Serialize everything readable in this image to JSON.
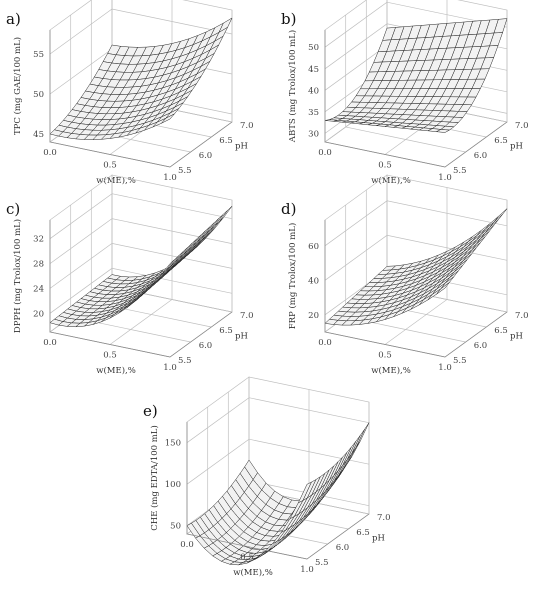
{
  "chart_data": [
    {
      "id": "a",
      "type": "surface3d",
      "panel_label": "a)",
      "xlabel": "w(ME),%",
      "ylabel": "pH",
      "zlabel": "TPC  (mg GAE/100 mL)",
      "x_ticks": [
        "0.0",
        "0.5",
        "1.0"
      ],
      "y_ticks": [
        "5.5",
        "6.0",
        "6.5",
        "7.0"
      ],
      "z_ticks": [
        "45",
        "50",
        "55"
      ],
      "xlim": [
        0,
        1
      ],
      "ylim": [
        5.5,
        7.0
      ],
      "zlim": [
        44,
        58
      ],
      "grid": true,
      "surface": {
        "z00": 45,
        "z10": 50,
        "z01": 50.5,
        "z11": 57,
        "cx": -1.5,
        "cy": -1.0,
        "cxy": 0
      }
    },
    {
      "id": "b",
      "type": "surface3d",
      "panel_label": "b)",
      "xlabel": "w(ME),%",
      "ylabel": "pH",
      "zlabel": "ABTS  (mg Trolox/100 mL)",
      "x_ticks": [
        "0.0",
        "0.5",
        "1.0"
      ],
      "y_ticks": [
        "5.5",
        "6.0",
        "6.5",
        "7.0"
      ],
      "z_ticks": [
        "30",
        "35",
        "40",
        "45",
        "50"
      ],
      "xlim": [
        0,
        1
      ],
      "ylim": [
        5.5,
        7.0
      ],
      "zlim": [
        28,
        54
      ],
      "grid": true,
      "surface": {
        "z00": 33,
        "z10": 36,
        "z01": 44,
        "z11": 52,
        "cx": 0,
        "cy": -5,
        "cxy": 0
      }
    },
    {
      "id": "c",
      "type": "surface3d",
      "panel_label": "c)",
      "xlabel": "w(ME),%",
      "ylabel": "pH",
      "zlabel": "DPPH  (mg Trolox/100 mL)",
      "x_ticks": [
        "0.0",
        "0.5",
        "1.0"
      ],
      "y_ticks": [
        "5.5",
        "6.0",
        "6.5",
        "7.0"
      ],
      "z_ticks": [
        "20",
        "24",
        "28",
        "32"
      ],
      "xlim": [
        0,
        1
      ],
      "ylim": [
        5.5,
        7.0
      ],
      "zlim": [
        17,
        35
      ],
      "grid": true,
      "surface": {
        "z00": 18.5,
        "z10": 32,
        "z01": 19,
        "z11": 34,
        "cx": -4,
        "cy": 0,
        "cxy": 0
      }
    },
    {
      "id": "d",
      "type": "surface3d",
      "panel_label": "d)",
      "xlabel": "w(ME),%",
      "ylabel": "pH",
      "zlabel": "FRP  (mg Trolox/100 mL)",
      "x_ticks": [
        "0.0",
        "0.5",
        "1.0"
      ],
      "y_ticks": [
        "5.5",
        "6.0",
        "6.5",
        "7.0"
      ],
      "z_ticks": [
        "20",
        "40",
        "60"
      ],
      "xlim": [
        0,
        1
      ],
      "ylim": [
        5.5,
        7.0
      ],
      "zlim": [
        10,
        75
      ],
      "grid": true,
      "surface": {
        "z00": 15,
        "z10": 50,
        "z01": 22,
        "z11": 70,
        "cx": -8,
        "cy": 0,
        "cxy": 0
      }
    },
    {
      "id": "e",
      "type": "surface3d",
      "panel_label": "e)",
      "xlabel": "w(ME),%",
      "ylabel": "pH",
      "zlabel": "CHE  (mg EDTA/100 mL)",
      "x_ticks": [
        "0.0",
        "0.5",
        "1.0"
      ],
      "y_ticks": [
        "5.5",
        "6.0",
        "6.5",
        "7.0"
      ],
      "z_ticks": [
        "50",
        "100",
        "150"
      ],
      "xlim": [
        0,
        1
      ],
      "ylim": [
        5.5,
        7.0
      ],
      "zlim": [
        40,
        175
      ],
      "grid": true,
      "surface": {
        "z00": 50,
        "z10": 130,
        "z01": 75,
        "z11": 150,
        "cx": -70,
        "cy": -10,
        "cxy": 0
      }
    }
  ]
}
